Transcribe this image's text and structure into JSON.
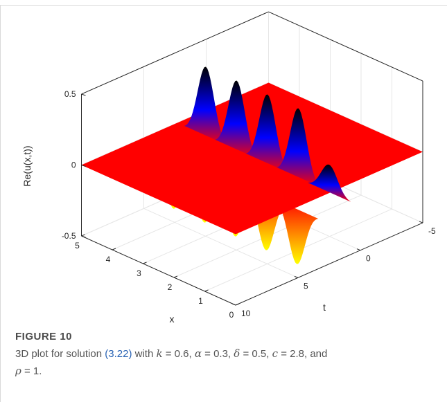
{
  "caption": {
    "label": "FIGURE 10",
    "text_before": "3D plot for solution ",
    "equation_ref": "(3.22)",
    "text_after_ref": " with ",
    "params": [
      {
        "symbol": "k",
        "value": "= 0.6,"
      },
      {
        "symbol": "α",
        "value": "= 0.3,"
      },
      {
        "symbol": "δ",
        "value": "= 0.5,"
      },
      {
        "symbol": "c",
        "value": "= 2.8,"
      },
      {
        "symbol": "ρ",
        "value": "= 1."
      }
    ],
    "and_word": "and"
  },
  "colors": {
    "surface_flat": "#ff0000",
    "surface_peak": "#000000",
    "surface_mid": "#0000ff",
    "surface_trough": "#ffff00",
    "axis": "#262626",
    "grid": "#e6e6e6"
  },
  "chart_data": {
    "type": "surface3d",
    "zlabel": "Re(u(x,t))",
    "xlabel": "x",
    "ylabel": "t",
    "xlim": [
      0,
      5
    ],
    "ylim": [
      -5,
      10
    ],
    "zlim": [
      -0.5,
      0.5
    ],
    "x_ticks": [
      "0",
      "1",
      "2",
      "3",
      "4",
      "5"
    ],
    "t_ticks": [
      "10",
      "5",
      "0",
      "-5"
    ],
    "z_ticks": [
      "0.5",
      "0",
      "-0.5"
    ],
    "grid": true,
    "colormap": [
      "yellow",
      "red",
      "blue",
      "black"
    ],
    "peaks": [
      {
        "x": 4.0,
        "peak": 0.5,
        "trough": -0.4
      },
      {
        "x": 3.0,
        "peak": 0.5,
        "trough": -0.4
      },
      {
        "x": 2.0,
        "peak": 0.5,
        "trough": -0.4
      },
      {
        "x": 1.0,
        "peak": 0.5,
        "trough": -0.4
      },
      {
        "x": 0.0,
        "peak": 0.2,
        "trough": -0.4
      }
    ]
  }
}
